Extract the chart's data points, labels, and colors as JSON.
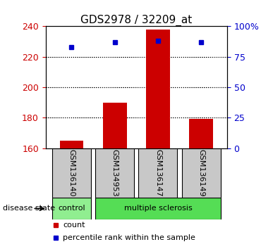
{
  "title": "GDS2978 / 32209_at",
  "samples": [
    "GSM136140",
    "GSM134953",
    "GSM136147",
    "GSM136149"
  ],
  "counts": [
    165,
    190,
    238,
    179
  ],
  "percentiles": [
    83,
    87,
    88,
    87
  ],
  "ylim_left": [
    160,
    240
  ],
  "ylim_right": [
    0,
    100
  ],
  "yticks_left": [
    160,
    180,
    200,
    220,
    240
  ],
  "yticks_right": [
    0,
    25,
    50,
    75,
    100
  ],
  "bar_color": "#cc0000",
  "dot_color": "#0000cc",
  "control_color": "#90ee90",
  "ms_color": "#55dd55",
  "label_bg_color": "#c8c8c8",
  "legend_count_label": "count",
  "legend_pct_label": "percentile rank within the sample",
  "disease_state_label": "disease state",
  "bar_width": 0.55
}
